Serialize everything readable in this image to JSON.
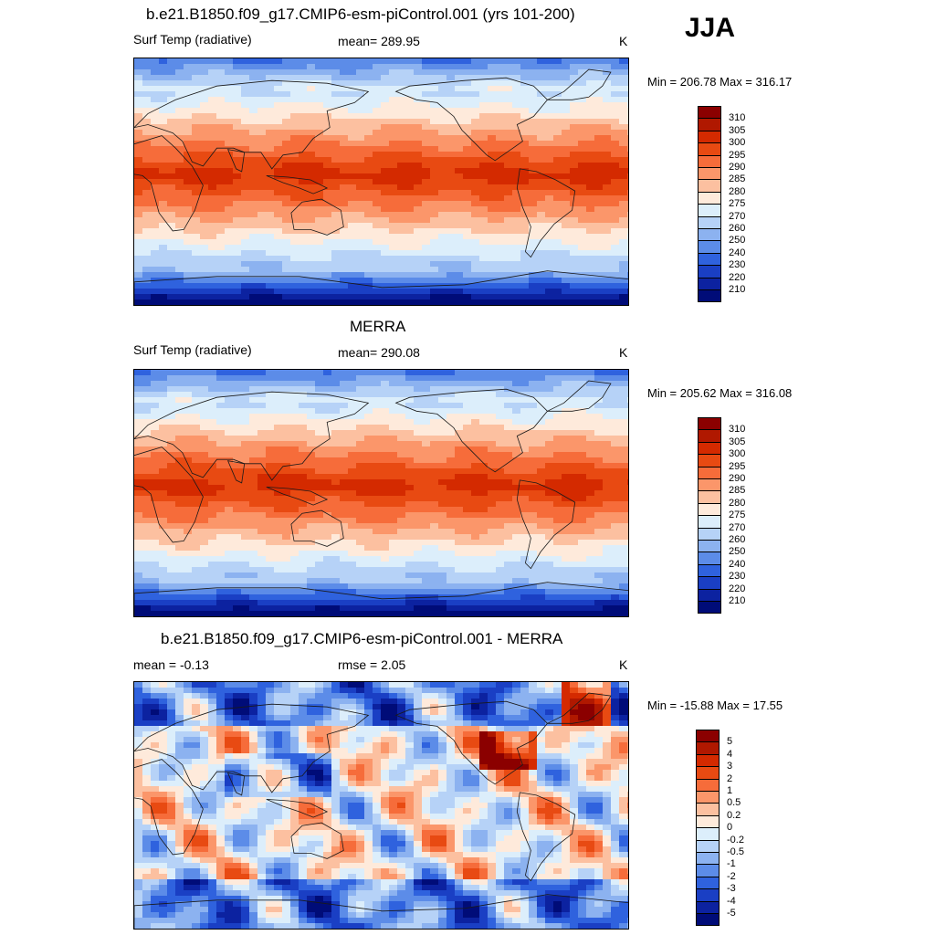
{
  "season": "JJA",
  "panels": [
    {
      "id": "model",
      "title": "b.e21.B1850.f09_g17.CMIP6-esm-piControl.001 (yrs 101-200)",
      "left_label": "Surf Temp (radiative)",
      "center_label": "mean= 289.95",
      "units": "K",
      "minmax": "Min = 206.78 Max = 316.17",
      "colorbar_labels": [
        "310",
        "305",
        "300",
        "295",
        "290",
        "285",
        "280",
        "275",
        "270",
        "260",
        "250",
        "240",
        "230",
        "220",
        "210"
      ],
      "colorbar_colors": [
        "#8b0000",
        "#b01800",
        "#d42a00",
        "#e84a12",
        "#f66c3a",
        "#fb966a",
        "#fcc0a0",
        "#feeadb",
        "#dceefb",
        "#b6d2f7",
        "#8cb2f0",
        "#5c8ce8",
        "#2f62de",
        "#1a3fc4",
        "#0c22a0",
        "#000c78"
      ],
      "base": "warm"
    },
    {
      "id": "obs",
      "title": "MERRA",
      "left_label": "Surf Temp (radiative)",
      "center_label": "mean= 290.08",
      "units": "K",
      "minmax": "Min = 205.62 Max = 316.08",
      "colorbar_labels": [
        "310",
        "305",
        "300",
        "295",
        "290",
        "285",
        "280",
        "275",
        "270",
        "260",
        "250",
        "240",
        "230",
        "220",
        "210"
      ],
      "colorbar_colors": [
        "#8b0000",
        "#b01800",
        "#d42a00",
        "#e84a12",
        "#f66c3a",
        "#fb966a",
        "#fcc0a0",
        "#feeadb",
        "#dceefb",
        "#b6d2f7",
        "#8cb2f0",
        "#5c8ce8",
        "#2f62de",
        "#1a3fc4",
        "#0c22a0",
        "#000c78"
      ],
      "base": "warm"
    },
    {
      "id": "diff",
      "title": "b.e21.B1850.f09_g17.CMIP6-esm-piControl.001 - MERRA",
      "left_label": "mean =  -0.13",
      "center_label": "rmse =   2.05",
      "units": "K",
      "minmax": "Min = -15.88 Max =  17.55",
      "colorbar_labels": [
        "5",
        "4",
        "3",
        "2",
        "1",
        "0.5",
        "0.2",
        "0",
        "-0.2",
        "-0.5",
        "-1",
        "-2",
        "-3",
        "-4",
        "-5"
      ],
      "colorbar_colors": [
        "#8b0000",
        "#b01800",
        "#d42a00",
        "#e84a12",
        "#f66c3a",
        "#fb966a",
        "#fcc0a0",
        "#feeadb",
        "#dceefb",
        "#b6d2f7",
        "#8cb2f0",
        "#5c8ce8",
        "#2f62de",
        "#1a3fc4",
        "#0c22a0",
        "#000c78"
      ],
      "base": "diff"
    }
  ]
}
